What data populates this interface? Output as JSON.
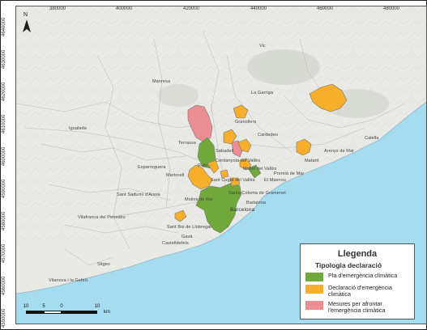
{
  "map": {
    "x_ticks": [
      "380000",
      "400000",
      "420000",
      "440000",
      "460000",
      "480000"
    ],
    "y_ticks": [
      "4640000",
      "4630000",
      "4620000",
      "4610000",
      "4600000",
      "4590000",
      "4580000",
      "4570000",
      "4560000",
      "4550000"
    ],
    "north_label": "N",
    "place_labels": [
      "Manresa",
      "Igualada",
      "Terrassa",
      "Sabadell",
      "Granollers",
      "Mataró",
      "Martorell",
      "Rubí",
      "Badalona",
      "Barcelona",
      "Vilafranca del Penedès",
      "Sant Sadurní d'Anoia",
      "Castelldefels",
      "Sitges",
      "Sant Cugat del Vallès",
      "Mollet del Vallès",
      "Vilanova i la Geltrú",
      "Sant Boi de Llobregat",
      "Gavà",
      "Calella",
      "Arenys de Mar",
      "Cardedeu",
      "Premià de Mar",
      "Santa Coloma de Gramenet",
      "El Masnou",
      "Molins de Rei",
      "Esparreguera",
      "La Garriga",
      "Vic",
      "Cerdanyola del Vallès"
    ],
    "colors": {
      "sea": "#a6dcef",
      "land": "#e9e9e6",
      "green": "#70a83a",
      "orange": "#f7ae2b",
      "pink": "#eb8f93"
    }
  },
  "legend": {
    "title": "Llegenda",
    "subtitle": "Tipologia declaració",
    "items": [
      {
        "label": "Pla d'emergència climàtica",
        "color": "#70a83a"
      },
      {
        "label": "Declaració d'emergència climàtica",
        "color": "#f7ae2b"
      },
      {
        "label": "Mesures per afrontar l'emergència climàtica",
        "color": "#eb8f93"
      }
    ]
  },
  "scale": {
    "labels": [
      "10",
      "5",
      "0",
      "10"
    ],
    "unit": "km"
  }
}
